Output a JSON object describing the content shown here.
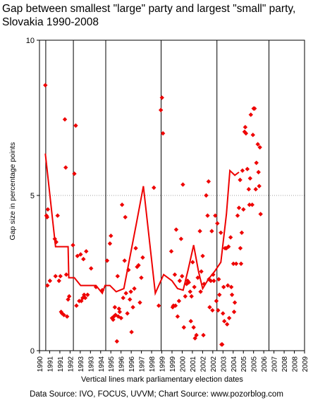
{
  "title_line1": "Gap between smallest \"large\" party and largest \"small\" party,",
  "title_line2": "Slovakia 1990-2008",
  "footnote": "Vertical lines mark parliamentary election dates",
  "source": "Data Source: IVO, FOCUS, UVVM; Chart Source: www.pozorblog.com",
  "colors": {
    "series": "#ee0000",
    "axis": "#000000",
    "grid": "#a0a0a0"
  },
  "chart_data": {
    "type": "scatter",
    "title": "Gap between smallest \"large\" party and largest \"small\" party, Slovakia 1990-2008",
    "ylabel": "Gap size in percentage points",
    "xlabel": "",
    "xlim": [
      1990,
      2009
    ],
    "ylim": [
      0,
      10
    ],
    "x_ticks": [
      "1990",
      "1991",
      "1991",
      "1992",
      "1993",
      "1993",
      "1994",
      "1995",
      "1996",
      "1996",
      "1997",
      "1998",
      "1999",
      "1999",
      "2000",
      "2001",
      "2002",
      "2002",
      "2003",
      "2004",
      "2005",
      "2005",
      "2006",
      "2007",
      "2008",
      "2008",
      "2009"
    ],
    "y_ticks": [
      "0",
      "5",
      "10"
    ],
    "gridline_y": 5,
    "election_dates": [
      1990.45,
      1992.43,
      1994.75,
      1998.72,
      2002.72,
      2006.45
    ],
    "series": [
      {
        "kind": "points",
        "points": [
          [
            1990.42,
            8.55
          ],
          [
            1990.5,
            4.35
          ],
          [
            1990.55,
            4.3
          ],
          [
            1990.6,
            4.55
          ],
          [
            1990.57,
            2.1
          ],
          [
            1990.75,
            2.25
          ],
          [
            1991.1,
            3.6
          ],
          [
            1991.2,
            3.5
          ],
          [
            1991.15,
            2.4
          ],
          [
            1991.3,
            4.35
          ],
          [
            1991.4,
            2.25
          ],
          [
            1991.5,
            2.4
          ],
          [
            1991.55,
            1.25
          ],
          [
            1991.62,
            1.2
          ],
          [
            1991.75,
            1.15
          ],
          [
            1991.82,
            7.45
          ],
          [
            1991.88,
            5.9
          ],
          [
            1991.92,
            2.45
          ],
          [
            1991.98,
            1.1
          ],
          [
            1992.05,
            1.65
          ],
          [
            1992.13,
            1.75
          ],
          [
            1992.4,
            3.4
          ],
          [
            1992.5,
            5.7
          ],
          [
            1992.6,
            7.25
          ],
          [
            1992.65,
            1.45
          ],
          [
            1992.72,
            3.05
          ],
          [
            1992.85,
            1.6
          ],
          [
            1992.95,
            3.1
          ],
          [
            1993.0,
            1.6
          ],
          [
            1993.1,
            1.7
          ],
          [
            1993.15,
            2.95
          ],
          [
            1993.2,
            1.8
          ],
          [
            1993.28,
            1.7
          ],
          [
            1993.35,
            3.2
          ],
          [
            1993.45,
            1.8
          ],
          [
            1993.7,
            2.65
          ],
          [
            1994.05,
            2.05
          ],
          [
            1994.5,
            1.95
          ],
          [
            1994.85,
            2.9
          ],
          [
            1995.05,
            3.45
          ],
          [
            1995.12,
            3.7
          ],
          [
            1995.2,
            1.05
          ],
          [
            1995.28,
            1.0
          ],
          [
            1995.33,
            1.1
          ],
          [
            1995.4,
            1.4
          ],
          [
            1995.45,
            1.15
          ],
          [
            1995.55,
            0.3
          ],
          [
            1995.6,
            2.4
          ],
          [
            1995.65,
            1.1
          ],
          [
            1995.7,
            1.35
          ],
          [
            1995.75,
            1.25
          ],
          [
            1995.85,
            1.05
          ],
          [
            1995.92,
            4.7
          ],
          [
            1996.0,
            1.7
          ],
          [
            1996.1,
            2.9
          ],
          [
            1996.15,
            4.3
          ],
          [
            1996.2,
            1.85
          ],
          [
            1996.3,
            1.2
          ],
          [
            1996.38,
            2.6
          ],
          [
            1996.48,
            1.65
          ],
          [
            1996.55,
            1.9
          ],
          [
            1996.6,
            0.6
          ],
          [
            1996.7,
            1.4
          ],
          [
            1996.8,
            2.0
          ],
          [
            1996.9,
            3.3
          ],
          [
            1997.0,
            2.7
          ],
          [
            1997.1,
            2.75
          ],
          [
            1997.2,
            1.55
          ],
          [
            1997.3,
            2.35
          ],
          [
            1997.4,
            3.0
          ],
          [
            1998.2,
            5.25
          ],
          [
            1998.55,
            1.45
          ],
          [
            1998.7,
            7.75
          ],
          [
            1998.78,
            8.15
          ],
          [
            1998.85,
            7.0
          ],
          [
            1999.45,
            3.2
          ],
          [
            1999.55,
            1.4
          ],
          [
            1999.6,
            1.45
          ],
          [
            1999.7,
            2.45
          ],
          [
            1999.75,
            1.45
          ],
          [
            1999.8,
            3.9
          ],
          [
            1999.9,
            1.1
          ],
          [
            2000.0,
            1.6
          ],
          [
            2000.05,
            2.25
          ],
          [
            2000.15,
            3.6
          ],
          [
            2000.22,
            2.4
          ],
          [
            2000.28,
            5.35
          ],
          [
            2000.35,
            0.75
          ],
          [
            2000.45,
            1.75
          ],
          [
            2000.55,
            2.15
          ],
          [
            2000.62,
            2.25
          ],
          [
            2000.7,
            2.2
          ],
          [
            2000.8,
            1.9
          ],
          [
            2000.85,
            0.95
          ],
          [
            2000.9,
            1.75
          ],
          [
            2000.98,
            2.85
          ],
          [
            2001.05,
            0.75
          ],
          [
            2001.1,
            2.05
          ],
          [
            2001.15,
            0.4
          ],
          [
            2001.25,
            0.5
          ],
          [
            2001.35,
            2.35
          ],
          [
            2001.5,
            3.85
          ],
          [
            2001.55,
            1.9
          ],
          [
            2001.6,
            2.55
          ],
          [
            2001.7,
            3.05
          ],
          [
            2001.75,
            0.5
          ],
          [
            2001.8,
            2.15
          ],
          [
            2001.95,
            5.0
          ],
          [
            2002.05,
            4.35
          ],
          [
            2002.12,
            5.45
          ],
          [
            2002.15,
            2.3
          ],
          [
            2002.2,
            1.4
          ],
          [
            2002.28,
            2.25
          ],
          [
            2002.35,
            3.85
          ],
          [
            2002.4,
            1.3
          ],
          [
            2002.45,
            2.45
          ],
          [
            2002.5,
            2.25
          ],
          [
            2002.6,
            4.35
          ],
          [
            2002.68,
            1.6
          ],
          [
            2002.75,
            4.1
          ],
          [
            2002.8,
            1.3
          ],
          [
            2002.85,
            2.3
          ],
          [
            2002.9,
            1.8
          ],
          [
            2003.0,
            3.8
          ],
          [
            2003.05,
            0.2
          ],
          [
            2003.1,
            0.2
          ],
          [
            2003.15,
            1.2
          ],
          [
            2003.2,
            2.05
          ],
          [
            2003.25,
            0.95
          ],
          [
            2003.3,
            3.3
          ],
          [
            2003.4,
            3.3
          ],
          [
            2003.45,
            0.85
          ],
          [
            2003.5,
            2.1
          ],
          [
            2003.55,
            3.35
          ],
          [
            2003.6,
            1.05
          ],
          [
            2003.7,
            3.65
          ],
          [
            2003.75,
            2.05
          ],
          [
            2003.8,
            1.8
          ],
          [
            2003.9,
            2.8
          ],
          [
            2003.95,
            1.25
          ],
          [
            2004.0,
            1.55
          ],
          [
            2004.1,
            2.8
          ],
          [
            2004.2,
            4.35
          ],
          [
            2004.3,
            4.6
          ],
          [
            2004.38,
            5.5
          ],
          [
            2004.4,
            3.3
          ],
          [
            2004.45,
            2.8
          ],
          [
            2004.5,
            3.8
          ],
          [
            2004.55,
            5.8
          ],
          [
            2004.62,
            4.55
          ],
          [
            2004.7,
            7.05
          ],
          [
            2004.75,
            7.2
          ],
          [
            2004.8,
            7.0
          ],
          [
            2004.9,
            5.85
          ],
          [
            2005.0,
            5.2
          ],
          [
            2005.05,
            4.7
          ],
          [
            2005.1,
            5.55
          ],
          [
            2005.15,
            7.6
          ],
          [
            2005.25,
            4.7
          ],
          [
            2005.3,
            6.95
          ],
          [
            2005.35,
            7.8
          ],
          [
            2005.42,
            7.8
          ],
          [
            2005.5,
            5.2
          ],
          [
            2005.55,
            6.05
          ],
          [
            2005.65,
            6.65
          ],
          [
            2005.7,
            5.75
          ],
          [
            2005.75,
            5.3
          ],
          [
            2005.8,
            6.55
          ],
          [
            2005.85,
            4.4
          ]
        ]
      },
      {
        "kind": "line",
        "points": [
          [
            1990.42,
            6.35
          ],
          [
            1991.15,
            3.35
          ],
          [
            1992.05,
            3.35
          ],
          [
            1992.1,
            2.35
          ],
          [
            1992.5,
            2.35
          ],
          [
            1992.95,
            2.1
          ],
          [
            1994.05,
            2.1
          ],
          [
            1994.5,
            1.85
          ],
          [
            1994.7,
            2.1
          ],
          [
            1995.05,
            2.1
          ],
          [
            1995.5,
            1.9
          ],
          [
            1996.05,
            2.0
          ],
          [
            1996.95,
            4.1
          ],
          [
            1997.45,
            5.3
          ],
          [
            1998.3,
            1.85
          ],
          [
            1998.9,
            2.45
          ],
          [
            1999.5,
            2.25
          ],
          [
            1999.9,
            2.0
          ],
          [
            2000.3,
            1.95
          ],
          [
            2000.65,
            2.6
          ],
          [
            2001.05,
            3.4
          ],
          [
            2001.4,
            2.55
          ],
          [
            2001.7,
            2.0
          ],
          [
            2002.1,
            2.3
          ],
          [
            2002.55,
            2.55
          ],
          [
            2003.0,
            2.85
          ],
          [
            2003.4,
            4.4
          ],
          [
            2003.65,
            5.8
          ],
          [
            2004.0,
            5.65
          ],
          [
            2004.3,
            5.75
          ]
        ]
      }
    ]
  }
}
